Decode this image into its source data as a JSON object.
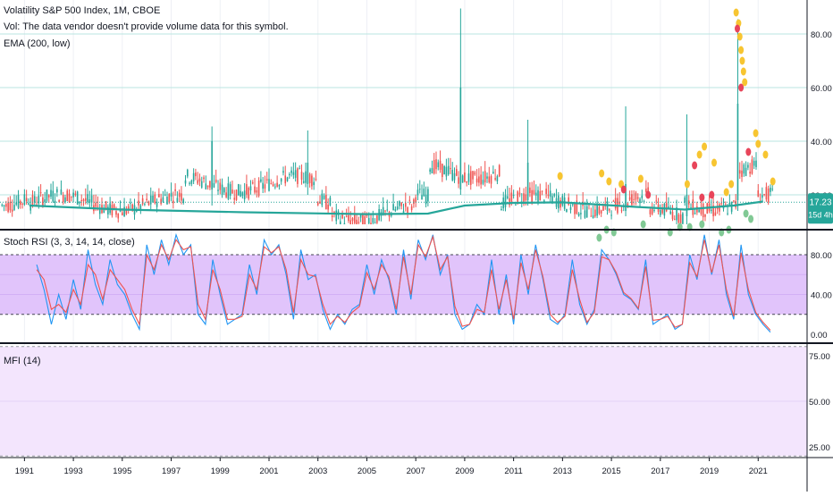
{
  "header": {
    "symbol_line": "Volatility S&P 500 Index, 1M, CBOE",
    "vol_line": "Vol: The data vendor doesn't provide volume data for this symbol.",
    "ema_line": "EMA (200, low)"
  },
  "price_badge": {
    "value": "17.23",
    "countdown": "15d 4h"
  },
  "colors": {
    "up": "#26a69a",
    "down": "#ef5350",
    "ema": "#26a69a",
    "k": "#2196f3",
    "d": "#ef5350",
    "stoch_fill": "#e1c4fb",
    "mfi_fill": "#f3e5fd",
    "dot_yellow": "#f7c531",
    "dot_red": "#e8455a",
    "dot_green": "#81c995"
  },
  "chart_data": [
    {
      "type": "candlestick",
      "title": "Volatility S&P 500 Index, 1M, CBOE",
      "y_ticks": [
        "80.00",
        "60.00",
        "40.00",
        "20.00"
      ],
      "ylim": [
        0,
        92
      ],
      "grid": true,
      "series": [
        {
          "name": "EMA (200, low)"
        }
      ],
      "last_value": 17.23,
      "ema_x": [
        1991.2,
        1995,
        2000,
        2005,
        2007.5,
        2009,
        2011,
        2013,
        2016,
        2018,
        2020,
        2021.2
      ],
      "ema_y": [
        16,
        14.5,
        13.5,
        12.8,
        13,
        16,
        17,
        17.2,
        15.5,
        14.5,
        16,
        17.5
      ],
      "key_candles": [
        {
          "x": 2008.8,
          "open": 22,
          "high": 89.5,
          "low": 20,
          "close": 60
        },
        {
          "x": 2020.2,
          "open": 18,
          "high": 85.5,
          "low": 14,
          "close": 54
        },
        {
          "x": 1998.7,
          "open": 22,
          "high": 45.5,
          "low": 16,
          "close": 40
        },
        {
          "x": 2002.6,
          "open": 24,
          "high": 44,
          "low": 20,
          "close": 32
        },
        {
          "x": 2011.6,
          "open": 18,
          "high": 48,
          "low": 16,
          "close": 32
        },
        {
          "x": 2015.6,
          "open": 14,
          "high": 53,
          "low": 12,
          "close": 24
        },
        {
          "x": 2018.1,
          "open": 12,
          "high": 50,
          "low": 9,
          "close": 20
        }
      ],
      "signal_dots": {
        "yellow": [
          [
            2020.1,
            88
          ],
          [
            2020.2,
            84
          ],
          [
            2020.25,
            79
          ],
          [
            2020.3,
            74
          ],
          [
            2020.35,
            70
          ],
          [
            2020.4,
            66
          ],
          [
            2020.45,
            62
          ],
          [
            2020.9,
            43
          ],
          [
            2021.0,
            39
          ],
          [
            2021.3,
            35
          ],
          [
            2019.2,
            32
          ],
          [
            2018.8,
            38
          ],
          [
            2018.6,
            35
          ],
          [
            2014.6,
            28
          ],
          [
            2014.9,
            25
          ],
          [
            2015.4,
            24
          ],
          [
            2016.2,
            26
          ],
          [
            2012.9,
            27
          ],
          [
            2018.1,
            24
          ],
          [
            2019.9,
            24
          ],
          [
            2019.7,
            21
          ],
          [
            2021.6,
            25
          ]
        ],
        "red": [
          [
            2020.15,
            82
          ],
          [
            2020.3,
            60
          ],
          [
            2018.4,
            31
          ],
          [
            2019.1,
            20
          ],
          [
            2020.6,
            36
          ],
          [
            2015.5,
            22
          ],
          [
            2016.5,
            20
          ],
          [
            2018.7,
            19
          ]
        ],
        "green": [
          [
            2014.5,
            4
          ],
          [
            2014.8,
            7
          ],
          [
            2015.1,
            6
          ],
          [
            2017.4,
            6
          ],
          [
            2018.2,
            8
          ],
          [
            2018.7,
            9
          ],
          [
            2019.5,
            6
          ],
          [
            2019.8,
            7
          ],
          [
            2020.5,
            13
          ],
          [
            2020.7,
            11
          ],
          [
            2016.3,
            9
          ],
          [
            2017.8,
            8
          ]
        ]
      }
    },
    {
      "type": "line",
      "title": "Stoch RSI (3, 3, 14, 14, close)",
      "y_ticks": [
        "80.00",
        "40.00",
        "0.00"
      ],
      "ylim": [
        -5,
        105
      ],
      "bands": [
        20,
        80
      ],
      "series": [
        {
          "name": "K",
          "x": [
            1991.5,
            1991.8,
            1992.1,
            1992.4,
            1992.7,
            1993,
            1993.3,
            1993.6,
            1993.9,
            1994.2,
            1994.5,
            1994.8,
            1995.1,
            1995.4,
            1995.7,
            1996,
            1996.3,
            1996.6,
            1996.9,
            1997.2,
            1997.5,
            1997.8,
            1998.1,
            1998.4,
            1998.7,
            1999,
            1999.3,
            1999.6,
            1999.9,
            2000.2,
            2000.5,
            2000.8,
            2001.1,
            2001.4,
            2001.7,
            2002,
            2002.3,
            2002.6,
            2002.9,
            2003.2,
            2003.5,
            2003.8,
            2004.1,
            2004.4,
            2004.7,
            2005,
            2005.3,
            2005.6,
            2005.9,
            2006.2,
            2006.5,
            2006.8,
            2007.1,
            2007.4,
            2007.7,
            2008,
            2008.3,
            2008.6,
            2008.9,
            2009.2,
            2009.5,
            2009.8,
            2010.1,
            2010.4,
            2010.7,
            2011,
            2011.3,
            2011.6,
            2011.9,
            2012.2,
            2012.5,
            2012.8,
            2013.1,
            2013.4,
            2013.7,
            2014,
            2014.3,
            2014.6,
            2014.9,
            2015.2,
            2015.5,
            2015.8,
            2016.1,
            2016.4,
            2016.7,
            2017,
            2017.3,
            2017.6,
            2017.9,
            2018.2,
            2018.5,
            2018.8,
            2019.1,
            2019.4,
            2019.7,
            2020,
            2020.3,
            2020.6,
            2020.9,
            2021.2,
            2021.5
          ],
          "values": [
            70,
            45,
            10,
            40,
            15,
            55,
            25,
            85,
            50,
            30,
            75,
            50,
            40,
            20,
            5,
            90,
            60,
            95,
            70,
            100,
            80,
            90,
            20,
            10,
            75,
            40,
            10,
            15,
            20,
            70,
            40,
            95,
            80,
            90,
            60,
            15,
            85,
            55,
            60,
            25,
            5,
            20,
            10,
            25,
            30,
            70,
            40,
            75,
            55,
            20,
            85,
            35,
            95,
            75,
            100,
            60,
            80,
            20,
            5,
            10,
            30,
            20,
            75,
            20,
            60,
            10,
            80,
            40,
            90,
            55,
            15,
            10,
            20,
            75,
            30,
            10,
            25,
            85,
            75,
            60,
            40,
            35,
            25,
            75,
            10,
            15,
            20,
            5,
            10,
            80,
            55,
            100,
            60,
            95,
            40,
            15,
            90,
            40,
            20,
            10,
            2
          ]
        },
        {
          "name": "D",
          "x": [
            1991.5,
            1991.8,
            1992.1,
            1992.4,
            1992.7,
            1993,
            1993.3,
            1993.6,
            1993.9,
            1994.2,
            1994.5,
            1994.8,
            1995.1,
            1995.4,
            1995.7,
            1996,
            1996.3,
            1996.6,
            1996.9,
            1997.2,
            1997.5,
            1997.8,
            1998.1,
            1998.4,
            1998.7,
            1999,
            1999.3,
            1999.6,
            1999.9,
            2000.2,
            2000.5,
            2000.8,
            2001.1,
            2001.4,
            2001.7,
            2002,
            2002.3,
            2002.6,
            2002.9,
            2003.2,
            2003.5,
            2003.8,
            2004.1,
            2004.4,
            2004.7,
            2005,
            2005.3,
            2005.6,
            2005.9,
            2006.2,
            2006.5,
            2006.8,
            2007.1,
            2007.4,
            2007.7,
            2008,
            2008.3,
            2008.6,
            2008.9,
            2009.2,
            2009.5,
            2009.8,
            2010.1,
            2010.4,
            2010.7,
            2011,
            2011.3,
            2011.6,
            2011.9,
            2012.2,
            2012.5,
            2012.8,
            2013.1,
            2013.4,
            2013.7,
            2014,
            2014.3,
            2014.6,
            2014.9,
            2015.2,
            2015.5,
            2015.8,
            2016.1,
            2016.4,
            2016.7,
            2017,
            2017.3,
            2017.6,
            2017.9,
            2018.2,
            2018.5,
            2018.8,
            2019.1,
            2019.4,
            2019.7,
            2020,
            2020.3,
            2020.6,
            2020.9,
            2021.2,
            2021.5
          ],
          "values": [
            65,
            55,
            25,
            30,
            22,
            45,
            30,
            70,
            60,
            35,
            65,
            55,
            45,
            25,
            10,
            80,
            65,
            90,
            75,
            95,
            85,
            88,
            30,
            15,
            65,
            45,
            15,
            15,
            18,
            60,
            45,
            88,
            82,
            88,
            65,
            22,
            75,
            60,
            58,
            30,
            10,
            18,
            12,
            22,
            28,
            62,
            45,
            70,
            58,
            25,
            78,
            40,
            90,
            78,
            98,
            65,
            78,
            28,
            8,
            10,
            25,
            22,
            65,
            25,
            55,
            15,
            72,
            45,
            85,
            58,
            20,
            12,
            18,
            65,
            35,
            12,
            22,
            78,
            75,
            62,
            42,
            36,
            26,
            68,
            14,
            15,
            18,
            7,
            10,
            72,
            58,
            95,
            62,
            90,
            45,
            18,
            82,
            45,
            22,
            12,
            4
          ]
        }
      ]
    },
    {
      "type": "line",
      "title": "MFI (14)",
      "y_ticks": [
        "75.00",
        "50.00",
        "25.00"
      ],
      "ylim": [
        18,
        82
      ],
      "bands": [
        20,
        80
      ],
      "series": [
        {
          "name": "MFI",
          "values": []
        }
      ]
    }
  ],
  "x_axis": {
    "tick_labels": [
      "1991",
      "1993",
      "1995",
      "1997",
      "1999",
      "2001",
      "2003",
      "2005",
      "2007",
      "2009",
      "2011",
      "2013",
      "2015",
      "2017",
      "2019",
      "2021"
    ],
    "tick_values": [
      1991,
      1993,
      1995,
      1997,
      1999,
      2001,
      2003,
      2005,
      2007,
      2009,
      2011,
      2013,
      2015,
      2017,
      2019,
      2021
    ],
    "xlim": [
      1990,
      2023
    ]
  },
  "indicator_labels": {
    "stoch": "Stoch RSI (3, 3, 14, 14, close)",
    "mfi": "MFI (14)"
  }
}
